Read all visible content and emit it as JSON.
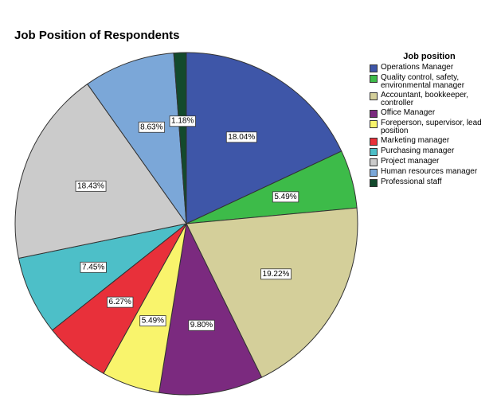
{
  "chart_data": {
    "type": "pie",
    "title": "Job Position of Respondents",
    "legend_title": "Job position",
    "legend": "right",
    "categories": [
      "Operations Manager",
      "Quality control, safety, environmental manager",
      "Accountant, bookkeeper, controller",
      "Office Manager",
      "Foreperson, supervisor, lead position",
      "Marketing manager",
      "Purchasing manager",
      "Project manager",
      "Human resources manager",
      "Professional staff"
    ],
    "values": [
      18.04,
      5.49,
      19.22,
      9.8,
      5.49,
      6.27,
      7.45,
      18.43,
      8.63,
      1.18
    ],
    "value_labels": [
      "18.04%",
      "5.49%",
      "19.22%",
      "9.80%",
      "5.49%",
      "6.27%",
      "7.45%",
      "18.43%",
      "8.63%",
      "1.18%"
    ],
    "colors": [
      "#3e56a8",
      "#3dbb49",
      "#d4cf9a",
      "#7b2a7f",
      "#f9f46c",
      "#e8303a",
      "#4dbfc8",
      "#cbcbcb",
      "#7ba7d8",
      "#134a2d"
    ]
  }
}
